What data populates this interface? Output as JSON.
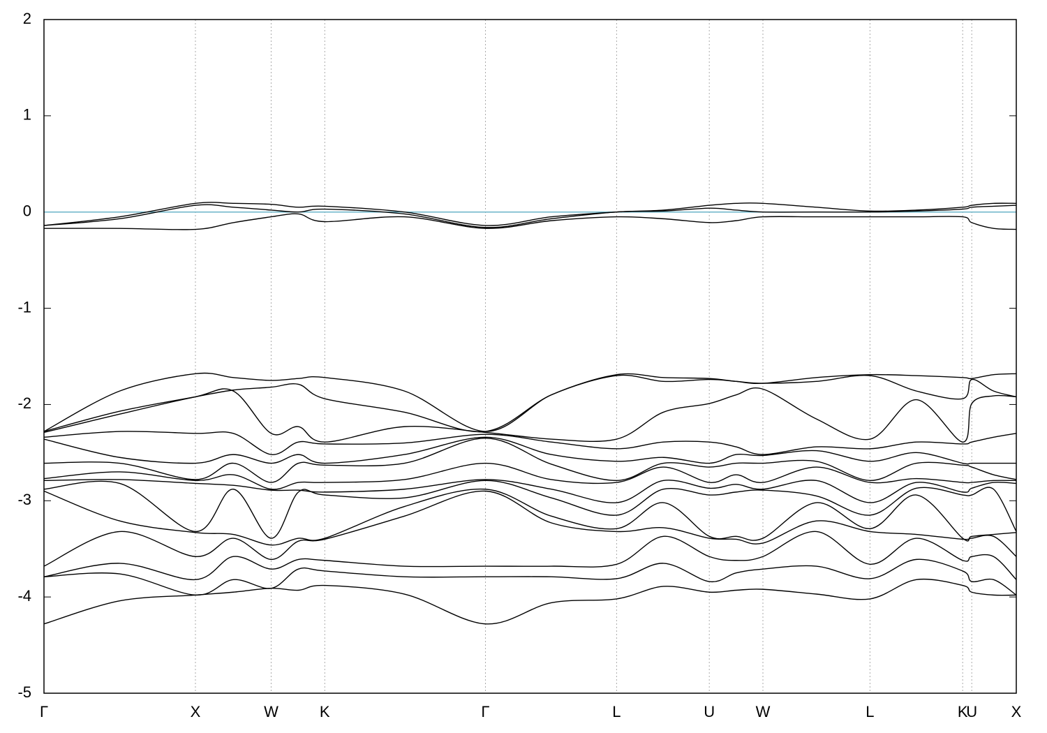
{
  "chart_data": {
    "type": "line",
    "x": [
      0,
      0.5,
      1,
      1.25,
      1.5,
      1.68,
      1.854,
      2.38,
      2.915,
      3.35,
      3.781,
      4.09,
      4.393,
      4.57,
      4.747,
      5.1,
      5.454,
      5.76,
      6.066,
      6.126,
      6.27,
      6.42
    ],
    "xlim": [
      0,
      6.42
    ],
    "xticks": [
      {
        "value": 0,
        "label": "Γ"
      },
      {
        "value": 1,
        "label": "X"
      },
      {
        "value": 1.5,
        "label": "W"
      },
      {
        "value": 1.854,
        "label": "K"
      },
      {
        "value": 2.915,
        "label": "Γ"
      },
      {
        "value": 3.781,
        "label": "L"
      },
      {
        "value": 4.393,
        "label": "U"
      },
      {
        "value": 4.747,
        "label": "W"
      },
      {
        "value": 5.454,
        "label": "L"
      },
      {
        "value": 6.066,
        "label": "K"
      },
      {
        "value": 6.126,
        "label": "U"
      },
      {
        "value": 6.42,
        "label": "X"
      }
    ],
    "ylim": [
      -5,
      2
    ],
    "yticks": [
      2,
      1,
      0,
      -1,
      -2,
      -3,
      -4,
      -5
    ],
    "grid": true,
    "color": "#000000",
    "fermi_level": 0,
    "fermi_color": "#6ab4c8",
    "series": [
      {
        "values": [
          -0.14,
          -0.05,
          0.09,
          0.09,
          0.08,
          0.05,
          0.06,
          0,
          -0.14,
          -0.05,
          0,
          0.02,
          0.07,
          0.09,
          0.09,
          0.05,
          0.01,
          0.02,
          0.05,
          0.07,
          0.09,
          0.09
        ]
      },
      {
        "values": [
          -0.14,
          -0.07,
          0.07,
          0.05,
          0.02,
          0,
          0.03,
          -0.02,
          -0.16,
          -0.07,
          0,
          0.01,
          0.04,
          0.02,
          0,
          0,
          0,
          0.01,
          0.03,
          0.05,
          0.06,
          0.07
        ]
      },
      {
        "values": [
          -0.17,
          -0.17,
          -0.18,
          -0.11,
          -0.05,
          -0.02,
          -0.1,
          -0.05,
          -0.17,
          -0.09,
          -0.05,
          -0.07,
          -0.11,
          -0.09,
          -0.05,
          -0.05,
          -0.05,
          -0.05,
          -0.05,
          -0.11,
          -0.17,
          -0.18
        ]
      },
      {
        "values": [
          -2.28,
          -1.86,
          -1.68,
          -1.72,
          -1.75,
          -1.73,
          -1.72,
          -1.86,
          -2.28,
          -1.9,
          -1.69,
          -1.72,
          -1.73,
          -1.76,
          -1.78,
          -1.72,
          -1.69,
          -1.7,
          -1.72,
          -1.73,
          -1.69,
          -1.68
        ]
      },
      {
        "values": [
          -2.28,
          -2.07,
          -1.92,
          -1.85,
          -1.82,
          -1.79,
          -1.94,
          -2.08,
          -2.28,
          -1.9,
          -1.7,
          -1.76,
          -1.74,
          -1.76,
          -1.78,
          -1.76,
          -1.7,
          -1.86,
          -1.94,
          -1.74,
          -1.86,
          -1.92
        ]
      },
      {
        "values": [
          -2.29,
          -2.1,
          -1.92,
          -1.86,
          -2.3,
          -2.23,
          -2.39,
          -2.23,
          -2.29,
          -2.36,
          -2.36,
          -2.08,
          -1.99,
          -1.9,
          -1.84,
          -2.15,
          -2.36,
          -1.95,
          -2.39,
          -1.99,
          -1.91,
          -1.92
        ]
      },
      {
        "values": [
          -2.34,
          -2.28,
          -2.3,
          -2.3,
          -2.52,
          -2.39,
          -2.41,
          -2.4,
          -2.31,
          -2.39,
          -2.46,
          -2.39,
          -2.39,
          -2.44,
          -2.52,
          -2.44,
          -2.46,
          -2.39,
          -2.41,
          -2.39,
          -2.34,
          -2.3
        ]
      },
      {
        "values": [
          -2.36,
          -2.55,
          -2.61,
          -2.52,
          -2.61,
          -2.52,
          -2.61,
          -2.52,
          -2.34,
          -2.52,
          -2.59,
          -2.55,
          -2.61,
          -2.52,
          -2.53,
          -2.48,
          -2.59,
          -2.5,
          -2.61,
          -2.61,
          -2.61,
          -2.61
        ]
      },
      {
        "values": [
          -2.61,
          -2.61,
          -2.78,
          -2.61,
          -2.81,
          -2.61,
          -2.63,
          -2.61,
          -2.35,
          -2.62,
          -2.79,
          -2.61,
          -2.65,
          -2.61,
          -2.61,
          -2.59,
          -2.79,
          -2.61,
          -2.63,
          -2.65,
          -2.73,
          -2.78
        ]
      },
      {
        "values": [
          -2.77,
          -2.7,
          -2.79,
          -2.73,
          -2.88,
          -2.81,
          -2.81,
          -2.78,
          -2.61,
          -2.78,
          -2.81,
          -2.65,
          -2.81,
          -2.73,
          -2.81,
          -2.65,
          -2.81,
          -2.77,
          -2.81,
          -2.81,
          -2.79,
          -2.79
        ]
      },
      {
        "values": [
          -2.79,
          -2.78,
          -2.82,
          -2.84,
          -2.89,
          -2.89,
          -2.91,
          -2.88,
          -2.78,
          -2.88,
          -3.02,
          -2.79,
          -2.87,
          -2.83,
          -2.88,
          -2.79,
          -3.02,
          -2.81,
          -2.91,
          -2.87,
          -2.81,
          -2.82
        ]
      },
      {
        "values": [
          -2.88,
          -2.82,
          -3.32,
          -2.88,
          -3.39,
          -2.91,
          -2.94,
          -2.97,
          -2.79,
          -2.97,
          -3.15,
          -2.88,
          -2.94,
          -2.91,
          -2.89,
          -2.95,
          -3.15,
          -2.87,
          -2.94,
          -2.94,
          -2.88,
          -3.32
        ]
      },
      {
        "values": [
          -2.9,
          -3.21,
          -3.33,
          -3.35,
          -3.46,
          -3.39,
          -3.39,
          -3.06,
          -2.88,
          -3.16,
          -3.29,
          -3.02,
          -3.37,
          -3.37,
          -3.39,
          -3.02,
          -3.29,
          -2.94,
          -3.39,
          -3.37,
          -3.35,
          -3.33
        ]
      },
      {
        "values": [
          -3.68,
          -3.32,
          -3.58,
          -3.39,
          -3.61,
          -3.42,
          -3.4,
          -3.16,
          -2.9,
          -3.23,
          -3.32,
          -3.28,
          -3.39,
          -3.4,
          -3.44,
          -3.21,
          -3.32,
          -3.35,
          -3.4,
          -3.39,
          -3.37,
          -3.58
        ]
      },
      {
        "values": [
          -3.79,
          -3.65,
          -3.82,
          -3.58,
          -3.71,
          -3.61,
          -3.62,
          -3.68,
          -3.68,
          -3.68,
          -3.66,
          -3.37,
          -3.58,
          -3.62,
          -3.58,
          -3.32,
          -3.66,
          -3.39,
          -3.62,
          -3.58,
          -3.58,
          -3.82
        ]
      },
      {
        "values": [
          -3.79,
          -3.76,
          -3.98,
          -3.82,
          -3.91,
          -3.71,
          -3.73,
          -3.79,
          -3.79,
          -3.79,
          -3.81,
          -3.65,
          -3.84,
          -3.75,
          -3.71,
          -3.68,
          -3.81,
          -3.61,
          -3.73,
          -3.84,
          -3.82,
          -3.98
        ]
      },
      {
        "values": [
          -4.28,
          -4.04,
          -3.98,
          -3.95,
          -3.91,
          -3.93,
          -3.88,
          -3.97,
          -4.28,
          -4.06,
          -4.02,
          -3.89,
          -3.95,
          -3.93,
          -3.92,
          -3.97,
          -4.02,
          -3.82,
          -3.88,
          -3.95,
          -3.98,
          -3.98
        ]
      }
    ]
  }
}
